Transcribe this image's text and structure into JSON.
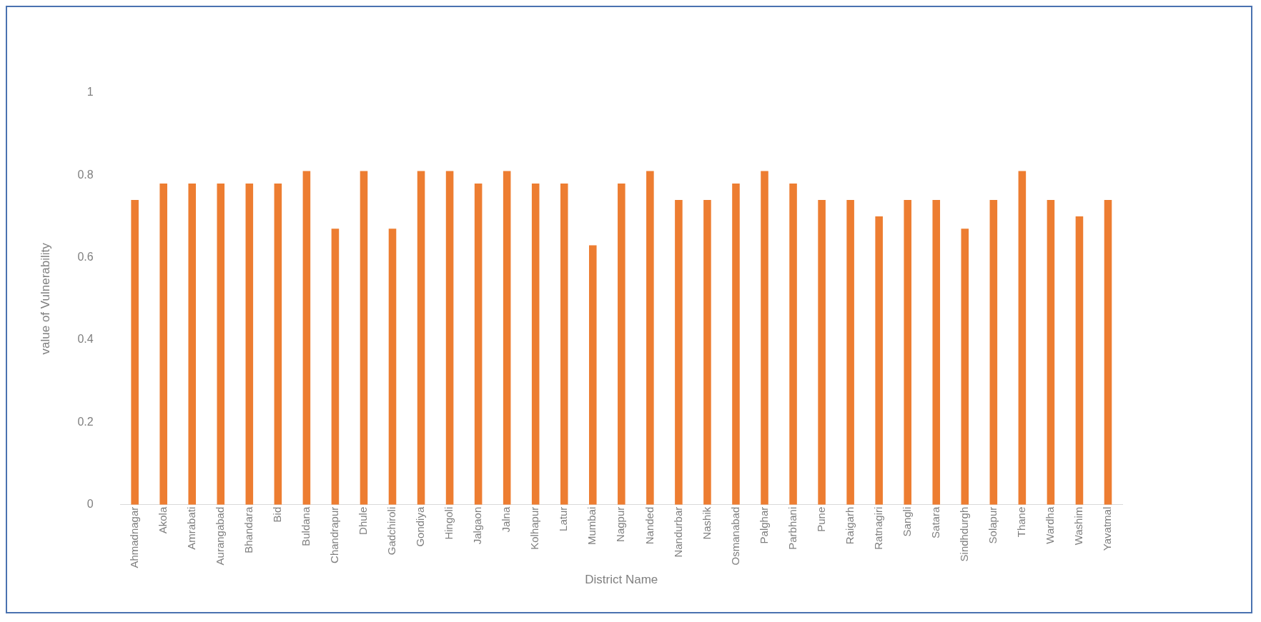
{
  "chart_data": {
    "type": "bar",
    "xlabel": "District Name",
    "ylabel": "value of Vulnerability",
    "categories": [
      "Ahmadnagar",
      "Akola",
      "Amrabati",
      "Aurangabad",
      "Bhandara",
      "Bid",
      "Buldana",
      "Chandrapur",
      "Dhule",
      "Gadchiroli",
      "Gondiya",
      "Hingoli",
      "Jalgaon",
      "Jalna",
      "Kolhapur",
      "Latur",
      "Mumbai",
      "Nagpur",
      "Nanded",
      "Nandurbar",
      "Nashik",
      "Osmanabad",
      "Palghar",
      "Parbhani",
      "Pune",
      "Raigarh",
      "Ratnagiri",
      "Sangli",
      "Satara",
      "Sindhdurgh",
      "Solapur",
      "Thane",
      "Wardha",
      "Washim",
      "Yavatmal"
    ],
    "values": [
      0.74,
      0.78,
      0.78,
      0.78,
      0.78,
      0.78,
      0.81,
      0.67,
      0.81,
      0.67,
      0.81,
      0.81,
      0.78,
      0.81,
      0.78,
      0.78,
      0.63,
      0.78,
      0.81,
      0.74,
      0.74,
      0.78,
      0.81,
      0.78,
      0.74,
      0.74,
      0.7,
      0.74,
      0.74,
      0.67,
      0.74,
      0.81,
      0.74,
      0.7,
      0.74
    ],
    "color": "#ed7d31",
    "ylim": [
      0,
      1
    ],
    "yticks": [
      0,
      0.2,
      0.4,
      0.6,
      0.8,
      1
    ],
    "grid": false
  }
}
